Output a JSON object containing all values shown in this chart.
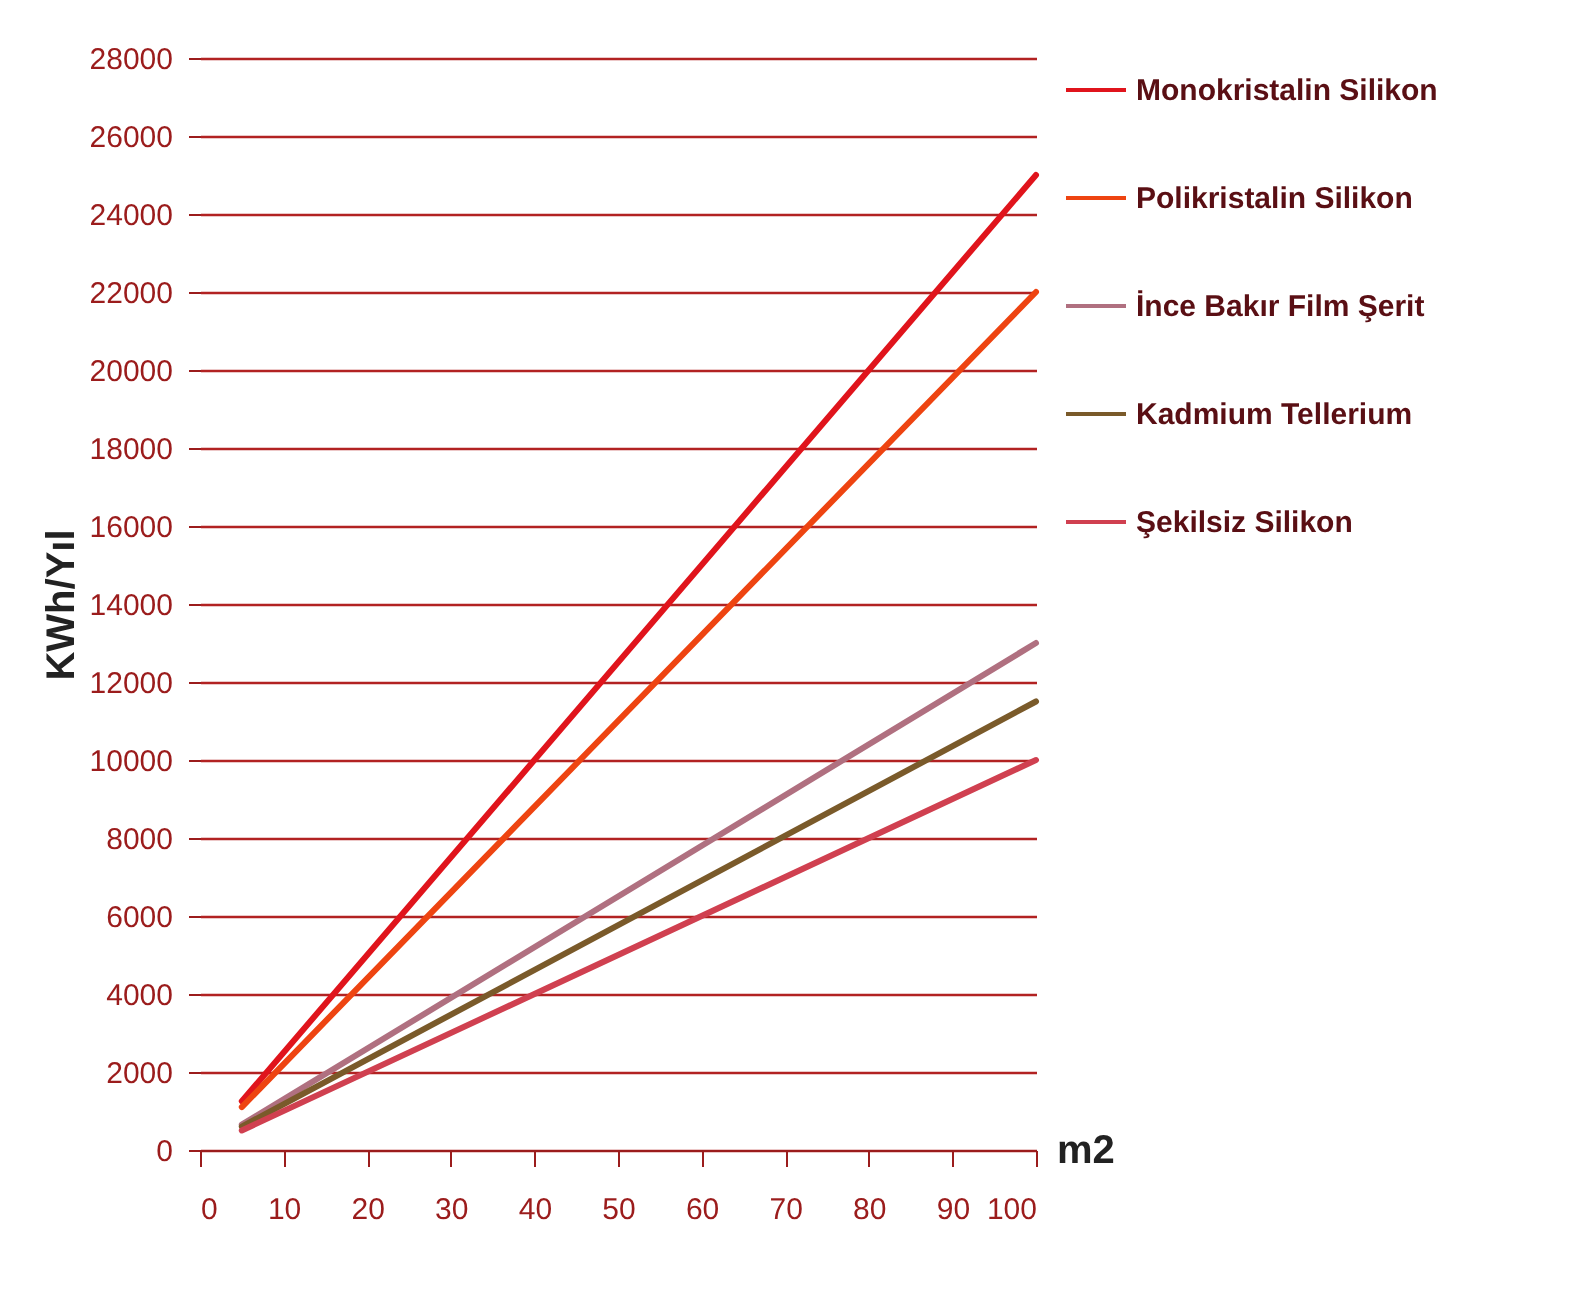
{
  "chart_data": {
    "type": "line",
    "xlabel": "m2",
    "ylabel": "KWh/Yıl",
    "x": [
      5,
      100
    ],
    "series": [
      {
        "name": "Monokristalin Silikon",
        "color": "#e0141c",
        "values": [
          1250,
          25000
        ]
      },
      {
        "name": "Polikristalin Silikon",
        "color": "#ee4411",
        "values": [
          1100,
          22000
        ]
      },
      {
        "name": "İnce Bakır Film Şerit",
        "color": "#b07080",
        "values": [
          650,
          13000
        ]
      },
      {
        "name": "Kadmium Tellerium",
        "color": "#7a5a2a",
        "values": [
          600,
          11500
        ]
      },
      {
        "name": "Şekilsiz Silikon",
        "color": "#d04050",
        "values": [
          500,
          10000
        ]
      }
    ],
    "xlim": [
      0,
      100
    ],
    "xticks": [
      0,
      10,
      20,
      30,
      40,
      50,
      60,
      70,
      80,
      90,
      100
    ],
    "ylim": [
      0,
      28000
    ],
    "yticks": [
      0,
      2000,
      4000,
      6000,
      8000,
      10000,
      12000,
      14000,
      16000,
      18000,
      20000,
      22000,
      24000,
      26000,
      28000
    ],
    "grid": "y",
    "legend": "right",
    "line_style": "solid",
    "marker": "none"
  }
}
